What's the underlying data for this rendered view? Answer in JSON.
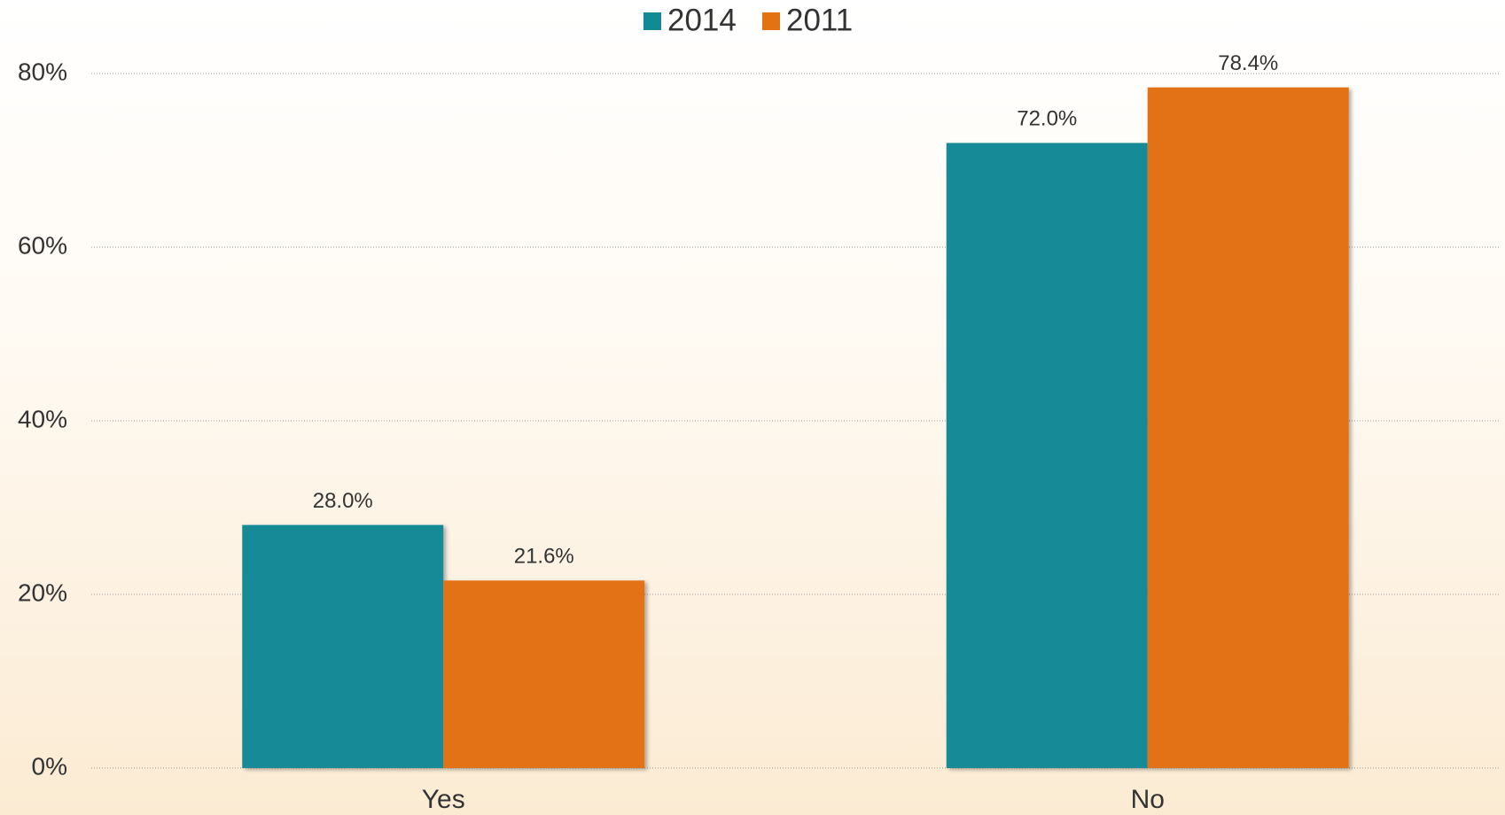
{
  "chart_data": {
    "type": "bar",
    "categories": [
      "Yes",
      "No"
    ],
    "series": [
      {
        "name": "2014",
        "color": "#128a96",
        "values": [
          28.0,
          72.0
        ],
        "value_labels": [
          "28.0%",
          "72.0%"
        ]
      },
      {
        "name": "2011",
        "color": "#e37213",
        "values": [
          21.6,
          78.4
        ],
        "value_labels": [
          "21.6%",
          "78.4%"
        ]
      }
    ],
    "ylim": [
      0,
      80
    ],
    "yticks": [
      {
        "value": 0,
        "label": "0%"
      },
      {
        "value": 20,
        "label": "20%"
      },
      {
        "value": 40,
        "label": "40%"
      },
      {
        "value": 60,
        "label": "60%"
      },
      {
        "value": 80,
        "label": "80%"
      }
    ],
    "grid": true,
    "legend": "top"
  }
}
